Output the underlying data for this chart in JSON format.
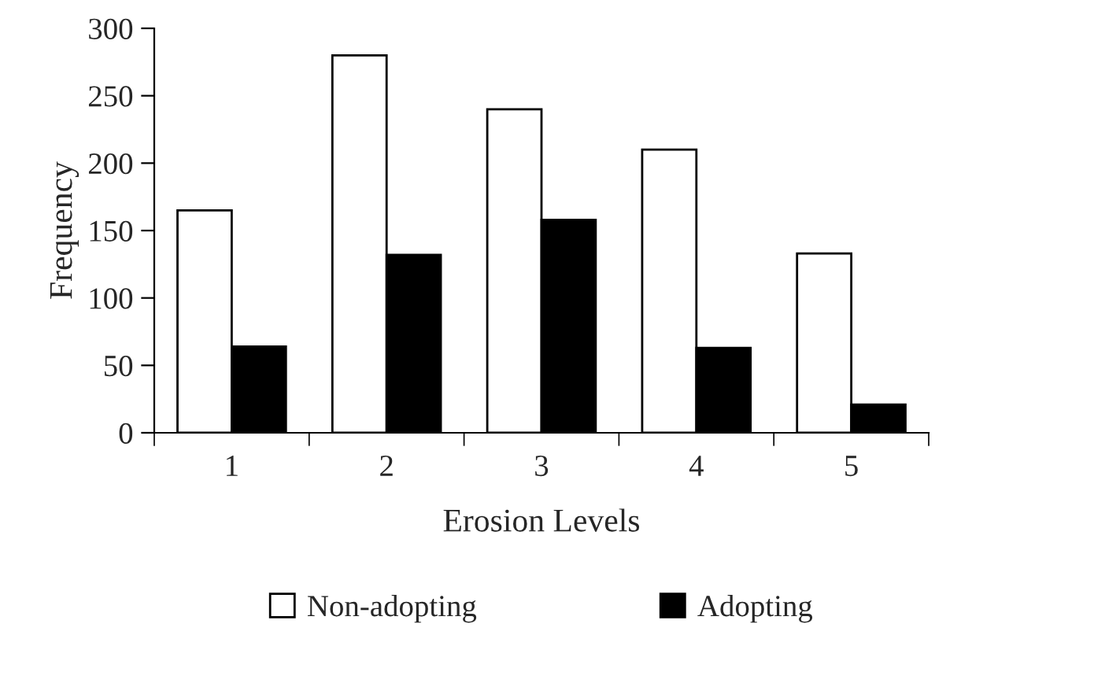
{
  "chart_data": {
    "type": "bar",
    "xlabel": "Erosion Levels",
    "ylabel": "Frequency",
    "categories": [
      "1",
      "2",
      "3",
      "4",
      "5"
    ],
    "series": [
      {
        "name": "Non-adopting",
        "color": "#ffffff",
        "values": [
          165,
          280,
          240,
          210,
          133
        ]
      },
      {
        "name": "Adopting",
        "color": "#000000",
        "values": [
          64,
          132,
          158,
          63,
          21
        ]
      }
    ],
    "ylim": [
      0,
      300
    ],
    "yticks": [
      0,
      50,
      100,
      150,
      200,
      250,
      300
    ],
    "grid": false,
    "legend": "bottom"
  }
}
